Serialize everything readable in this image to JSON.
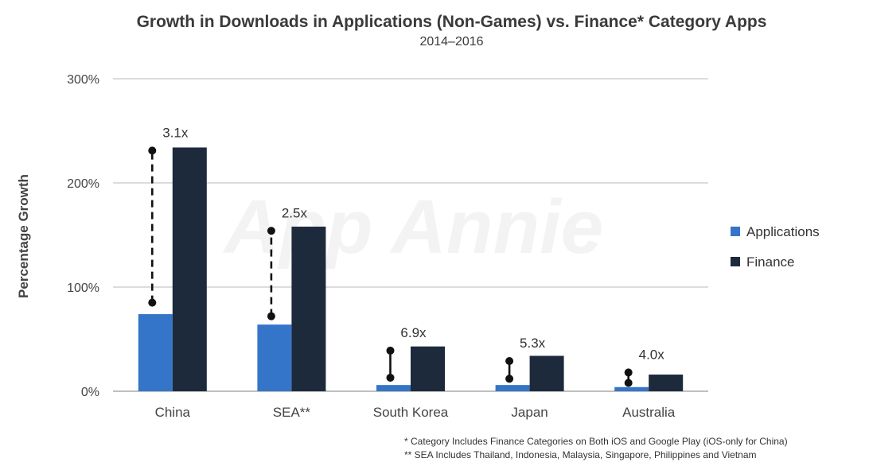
{
  "chart_data": {
    "type": "bar",
    "title": "Growth in Downloads in Applications (Non-Games) vs. Finance* Category Apps",
    "subtitle": "2014–2016",
    "ylabel": "Percentage Growth",
    "xlabel": "",
    "ylim": [
      0,
      300
    ],
    "yticks": [
      "0%",
      "100%",
      "200%",
      "300%"
    ],
    "ytick_values": [
      0,
      100,
      200,
      300
    ],
    "categories": [
      "China",
      "SEA**",
      "South Korea",
      "Japan",
      "Australia"
    ],
    "series": [
      {
        "name": "Applications",
        "color": "#3575c9",
        "values": [
          74,
          64,
          6,
          6,
          4
        ]
      },
      {
        "name": "Finance",
        "color": "#1c2a3c",
        "values": [
          234,
          158,
          43,
          34,
          16
        ]
      }
    ],
    "multipliers": [
      "3.1x",
      "2.5x",
      "6.9x",
      "5.3x",
      "4.0x"
    ],
    "connectors": [
      {
        "from": 85,
        "to": 231
      },
      {
        "from": 72,
        "to": 154
      },
      {
        "from": 13,
        "to": 39
      },
      {
        "from": 12,
        "to": 29
      },
      {
        "from": 8,
        "to": 18
      }
    ],
    "legend_position": "right",
    "grid": true,
    "watermark": "App Annie"
  },
  "footnotes": {
    "line1": "* Category Includes Finance Categories on Both iOS and Google Play (iOS-only for China)",
    "line2": "** SEA Includes Thailand, Indonesia, Malaysia, Singapore, Philippines and Vietnam"
  }
}
